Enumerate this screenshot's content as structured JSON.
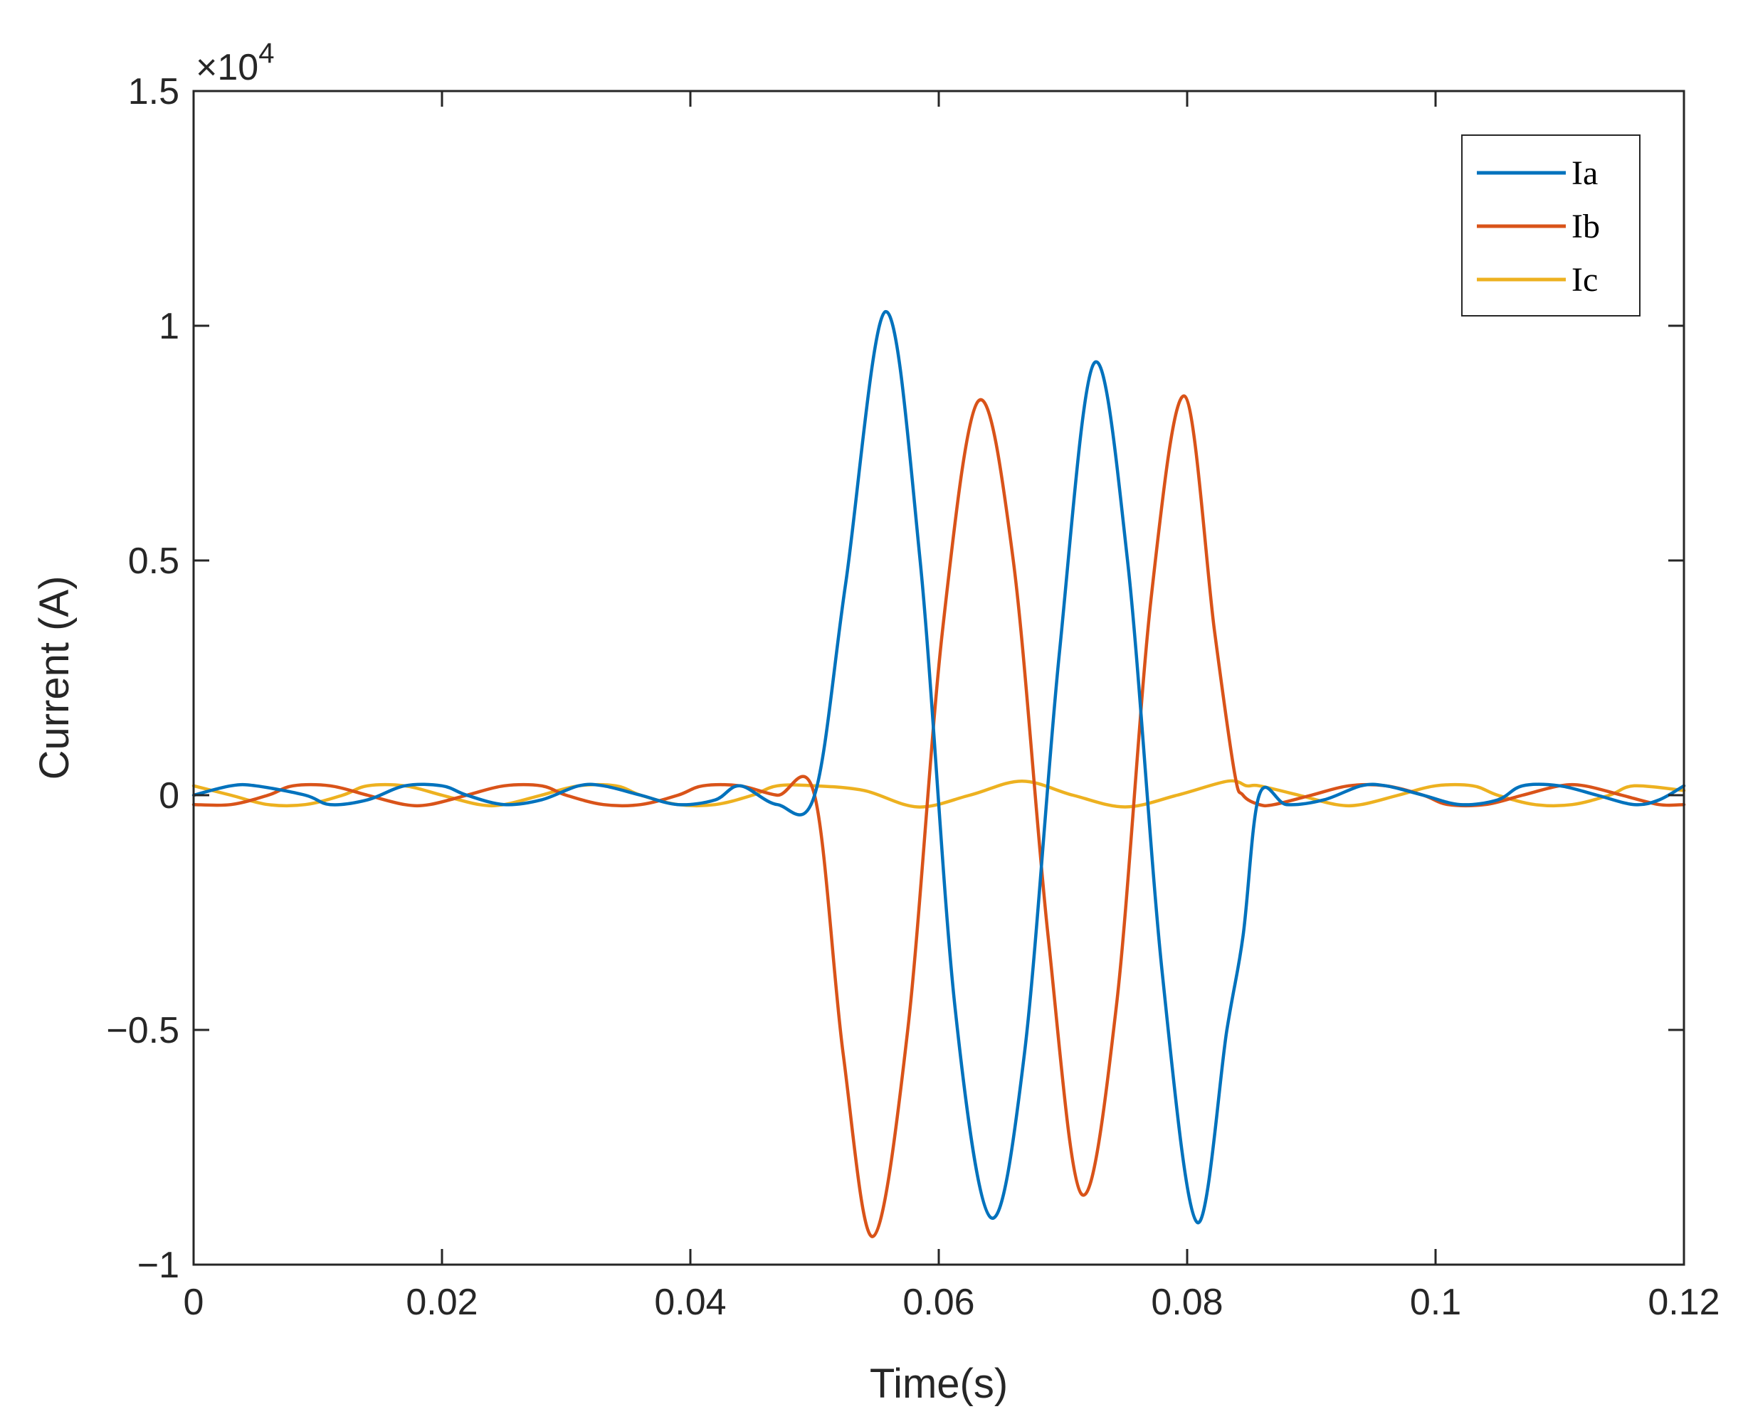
{
  "chart_data": {
    "type": "line",
    "title": "",
    "xlabel": "Time(s)",
    "ylabel": "Current (A)",
    "xlim": [
      0,
      0.12
    ],
    "ylim": [
      -1,
      1.5
    ],
    "y_multiplier_label": {
      "base": "×10",
      "exp": "4"
    },
    "xticks": [
      0,
      0.02,
      0.04,
      0.06,
      0.08,
      0.1,
      0.12
    ],
    "xtick_labels": [
      "0",
      "0.02",
      "0.04",
      "0.06",
      "0.08",
      "0.1",
      "0.12"
    ],
    "yticks": [
      -1,
      -0.5,
      0,
      0.5,
      1,
      1.5
    ],
    "ytick_labels": [
      "−1",
      "−0.5",
      "0",
      "0.5",
      "1",
      "1.5"
    ],
    "grid": false,
    "legend_position": "top-right",
    "series": [
      {
        "name": "Ia",
        "color": "#0072BD",
        "x": [
          0,
          0.003,
          0.005,
          0.009,
          0.011,
          0.014,
          0.017,
          0.02,
          0.022,
          0.025,
          0.028,
          0.031,
          0.033,
          0.036,
          0.039,
          0.042,
          0.044,
          0.047,
          0.05,
          0.0525,
          0.0557,
          0.0585,
          0.0613,
          0.0642,
          0.0669,
          0.0697,
          0.0725,
          0.0752,
          0.078,
          0.0808,
          0.0832,
          0.0845,
          0.0858,
          0.088,
          0.091,
          0.094,
          0.096,
          0.099,
          0.102,
          0.105,
          0.107,
          0.11,
          0.113,
          0.116,
          0.118,
          0.12
        ],
        "values": [
          0,
          0.02,
          0.02,
          0,
          -0.02,
          -0.01,
          0.02,
          0.02,
          0,
          -0.02,
          -0.01,
          0.02,
          0.02,
          0,
          -0.02,
          -0.01,
          0.02,
          -0.02,
          0,
          0.45,
          1.03,
          0.5,
          -0.45,
          -0.9,
          -0.55,
          0.3,
          0.92,
          0.5,
          -0.38,
          -0.91,
          -0.5,
          -0.3,
          0,
          -0.02,
          -0.01,
          0.02,
          0.02,
          0,
          -0.02,
          -0.01,
          0.02,
          0.02,
          0,
          -0.02,
          -0.01,
          0.02
        ]
      },
      {
        "name": "Ib",
        "color": "#D95319",
        "x": [
          0,
          0.003,
          0.006,
          0.008,
          0.011,
          0.014,
          0.017,
          0.019,
          0.022,
          0.025,
          0.028,
          0.03,
          0.033,
          0.036,
          0.039,
          0.041,
          0.044,
          0.047,
          0.05,
          0.0523,
          0.0547,
          0.0575,
          0.0603,
          0.0632,
          0.066,
          0.0688,
          0.0715,
          0.0743,
          0.0771,
          0.0798,
          0.0822,
          0.0838,
          0.0845,
          0.0858,
          0.087,
          0.09,
          0.093,
          0.096,
          0.099,
          0.101,
          0.104,
          0.107,
          0.11,
          0.112,
          0.115,
          0.118,
          0.12
        ],
        "values": [
          -0.02,
          -0.02,
          0,
          0.02,
          0.02,
          0,
          -0.02,
          -0.02,
          0,
          0.02,
          0.02,
          0,
          -0.02,
          -0.02,
          0,
          0.02,
          0.02,
          0,
          0,
          -0.55,
          -0.94,
          -0.5,
          0.35,
          0.84,
          0.5,
          -0.3,
          -0.85,
          -0.45,
          0.42,
          0.85,
          0.35,
          0.05,
          0,
          -0.02,
          -0.02,
          0,
          0.02,
          0.02,
          0,
          -0.02,
          -0.02,
          0,
          0.02,
          0.02,
          0,
          -0.02,
          -0.02
        ]
      },
      {
        "name": "Ic",
        "color": "#EDB120",
        "x": [
          0,
          0.003,
          0.006,
          0.009,
          0.012,
          0.014,
          0.017,
          0.02,
          0.023,
          0.025,
          0.028,
          0.031,
          0.034,
          0.036,
          0.039,
          0.042,
          0.045,
          0.047,
          0.05,
          0.054,
          0.0583,
          0.0625,
          0.0667,
          0.0708,
          0.075,
          0.0792,
          0.0833,
          0.0848,
          0.0858,
          0.089,
          0.092,
          0.094,
          0.097,
          0.1,
          0.103,
          0.105,
          0.108,
          0.111,
          0.114,
          0.116,
          0.12
        ],
        "values": [
          0.02,
          0,
          -0.02,
          -0.02,
          0,
          0.02,
          0.02,
          0,
          -0.02,
          -0.02,
          0,
          0.02,
          0.02,
          0,
          -0.02,
          -0.02,
          0,
          0.02,
          0.02,
          0.01,
          -0.025,
          0,
          0.03,
          0,
          -0.025,
          0,
          0.03,
          0.02,
          0.02,
          0,
          -0.02,
          -0.02,
          0,
          0.02,
          0.02,
          0,
          -0.02,
          -0.02,
          0,
          0.02,
          0.01
        ]
      }
    ]
  }
}
